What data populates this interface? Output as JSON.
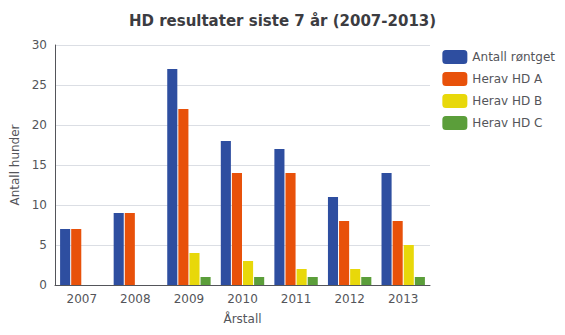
{
  "chart_data": {
    "type": "bar",
    "title": "HD resultater siste 7 år (2007-2013)",
    "xlabel": "Årstall",
    "ylabel": "Antall hunder",
    "categories": [
      "2007",
      "2008",
      "2009",
      "2010",
      "2011",
      "2012",
      "2013"
    ],
    "series": [
      {
        "name": "Antall røntget",
        "color": "#2E4EA0",
        "values": [
          7,
          9,
          27,
          18,
          17,
          11,
          14
        ]
      },
      {
        "name": "Herav HD A",
        "color": "#E8510A",
        "values": [
          7,
          9,
          22,
          14,
          14,
          8,
          8
        ]
      },
      {
        "name": "Herav HD B",
        "color": "#E8D80A",
        "values": [
          0,
          0,
          4,
          3,
          2,
          2,
          5
        ]
      },
      {
        "name": "Herav HD C",
        "color": "#5B9E3A",
        "values": [
          0,
          0,
          1,
          1,
          1,
          1,
          1
        ]
      }
    ],
    "ylim": [
      0,
      30
    ],
    "yticks": [
      0,
      5,
      10,
      15,
      20,
      25,
      30
    ],
    "grid": true,
    "legend": "upper right"
  }
}
